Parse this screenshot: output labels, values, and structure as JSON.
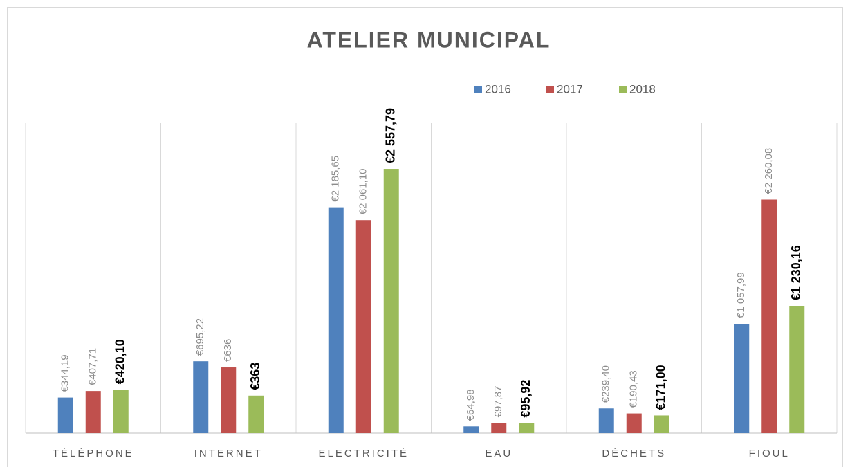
{
  "chart_data": {
    "type": "bar",
    "title": "ATELIER MUNICIPAL",
    "categories": [
      "TÉLÉPHONE",
      "INTERNET",
      "ELECTRICITÉ",
      "EAU",
      "DÉCHETS",
      "FIOUL"
    ],
    "series": [
      {
        "name": "2016",
        "color": "#4f81bd",
        "values": [
          344.19,
          695.22,
          2185.65,
          64.98,
          239.4,
          1057.99
        ],
        "value_labels": [
          "€344,19",
          "€695,22",
          "€2 185,65",
          "€64,98",
          "€239,40",
          "€1 057,99"
        ]
      },
      {
        "name": "2017",
        "color": "#c0504d",
        "values": [
          407.71,
          636,
          2061.1,
          97.87,
          190.43,
          2260.08
        ],
        "value_labels": [
          "€407,71",
          "€636",
          "€2 061,10",
          "€97,87",
          "€190,43",
          "€2 260,08"
        ]
      },
      {
        "name": "2018",
        "color": "#9bbb59",
        "bold_labels": true,
        "values": [
          420.1,
          363,
          2557.79,
          95.92,
          171.0,
          1230.16
        ],
        "value_labels": [
          "€420,10",
          "€363",
          "€2 557,79",
          "€95,92",
          "€171,00",
          "€1 230,16"
        ]
      }
    ],
    "ylim": [
      0,
      3000
    ],
    "legend": "top"
  }
}
